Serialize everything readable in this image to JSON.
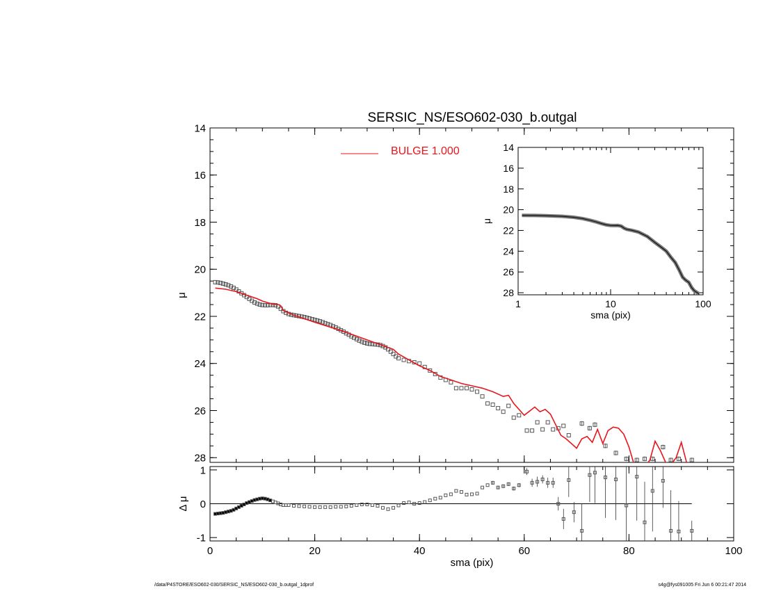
{
  "title": "SERSIC_NS/ESO602-030_b.outgal",
  "footer": {
    "left": "/data/P4STORE/ESO602-030/SERSIC_NS/ESO602-030_b.outgal_1dprof",
    "right": "s4g@fys091005  Fri Jun  6 00:21:47 2014"
  },
  "colors": {
    "model": "#e8151b",
    "points": "#555555",
    "axes": "#000000"
  },
  "chart_data": [
    {
      "name": "main-profile",
      "type": "scatter",
      "xlabel": "",
      "ylabel": "μ",
      "xlim": [
        0,
        100
      ],
      "ylim": [
        28.2,
        14
      ],
      "xticks": [
        0,
        20,
        40,
        60,
        80,
        100
      ],
      "yticks": [
        14,
        16,
        18,
        20,
        22,
        24,
        26,
        28
      ],
      "legend": {
        "position": "top-center",
        "entries": [
          {
            "label": "BULGE  1.000",
            "color": "#e8151b"
          }
        ]
      },
      "series": [
        {
          "name": "data",
          "marker": "square",
          "x": [
            1.0,
            1.5,
            2.0,
            2.5,
            3.0,
            3.5,
            4.0,
            4.5,
            5.0,
            5.5,
            6.0,
            6.5,
            7.0,
            7.5,
            8.0,
            8.5,
            9.0,
            9.5,
            10.0,
            10.5,
            11.0,
            11.5,
            12.0,
            12.5,
            13.0,
            13.5,
            14.0,
            14.5,
            15.0,
            15.5,
            16.0,
            16.5,
            17.0,
            17.5,
            18.0,
            18.5,
            19.0,
            19.5,
            20.0,
            20.5,
            21.0,
            21.5,
            22.0,
            22.5,
            23.0,
            23.5,
            24.0,
            24.5,
            25.0,
            25.5,
            26.0,
            26.5,
            27.0,
            27.5,
            28.0,
            28.5,
            29.0,
            29.5,
            30.0,
            30.5,
            31.0,
            31.5,
            32.0,
            32.5,
            33.0,
            33.5,
            34.0,
            34.5,
            35.0,
            35.5,
            36.0,
            37.0,
            38.0,
            39.0,
            40.0,
            41.0,
            42.0,
            43.0,
            44.0,
            45.0,
            46.0,
            47.0,
            48.0,
            49.0,
            50.0,
            51.0,
            52.0,
            53.0,
            54.0,
            55.0,
            56.0,
            57.0,
            58.0,
            59.0,
            60.5,
            61.5,
            62.5,
            63.5,
            64.5,
            65.5,
            66.5,
            67.5,
            68.5,
            71.0,
            72.5,
            73.5,
            75.5,
            77.5,
            79.5,
            81.5,
            83.0,
            84.5,
            86.5,
            88.0,
            89.5,
            92.0
          ],
          "y": [
            20.55,
            20.56,
            20.58,
            20.61,
            20.64,
            20.68,
            20.73,
            20.79,
            20.86,
            20.94,
            21.02,
            21.1,
            21.18,
            21.26,
            21.34,
            21.41,
            21.46,
            21.5,
            21.52,
            21.53,
            21.53,
            21.52,
            21.52,
            21.53,
            21.58,
            21.68,
            21.78,
            21.85,
            21.9,
            21.93,
            21.95,
            21.97,
            21.99,
            22.01,
            22.03,
            22.06,
            22.09,
            22.12,
            22.15,
            22.18,
            22.21,
            22.25,
            22.29,
            22.33,
            22.37,
            22.42,
            22.47,
            22.53,
            22.59,
            22.65,
            22.72,
            22.78,
            22.85,
            22.91,
            22.97,
            23.03,
            23.08,
            23.12,
            23.15,
            23.17,
            23.18,
            23.19,
            23.2,
            23.22,
            23.26,
            23.32,
            23.4,
            23.5,
            23.6,
            23.7,
            23.78,
            23.85,
            23.9,
            23.95,
            24.0,
            24.15,
            24.3,
            24.45,
            24.6,
            24.7,
            24.8,
            25.05,
            25.05,
            25.05,
            25.1,
            25.2,
            25.4,
            25.7,
            25.75,
            25.9,
            26.05,
            25.8,
            26.3,
            26.2,
            26.85,
            26.85,
            26.5,
            26.8,
            26.5,
            26.8,
            26.75,
            26.65,
            27.05,
            26.55,
            26.75,
            26.6,
            27.5,
            27.8,
            28.05,
            28.1,
            28.05,
            28.05,
            27.55,
            28.1,
            28.05,
            28.1
          ],
          "errors": [
            0.03,
            0.03,
            0.03,
            0.03,
            0.03,
            0.03,
            0.03,
            0.03,
            0.03,
            0.03,
            0.03,
            0.03,
            0.03,
            0.03,
            0.03,
            0.03,
            0.03,
            0.03,
            0.03,
            0.03,
            0.03,
            0.03,
            0.03,
            0.03,
            0.03,
            0.03,
            0.03,
            0.03,
            0.03,
            0.03,
            0.03,
            0.03,
            0.03,
            0.03,
            0.03,
            0.03,
            0.03,
            0.03,
            0.03,
            0.03,
            0.03,
            0.03,
            0.03,
            0.03,
            0.03,
            0.03,
            0.03,
            0.03,
            0.03,
            0.03,
            0.03,
            0.03,
            0.03,
            0.03,
            0.03,
            0.03,
            0.03,
            0.03,
            0.03,
            0.03,
            0.03,
            0.03,
            0.03,
            0.03,
            0.03,
            0.03,
            0.03,
            0.03,
            0.03,
            0.03,
            0.03,
            0.05,
            0.05,
            0.05,
            0.05,
            0.05,
            0.05,
            0.05,
            0.05,
            0.05,
            0.05,
            0.05,
            0.05,
            0.05,
            0.05,
            0.05,
            0.05,
            0.05,
            0.05,
            0.05,
            0.05,
            0.05,
            0.05,
            0.05,
            0.05,
            0.05,
            0.05,
            0.05,
            0.05,
            0.05,
            0.05,
            0.05,
            0.05,
            0.1,
            0.1,
            0.1,
            0.1,
            0.1,
            0.1,
            0.1,
            0.1,
            0.1,
            0.1,
            0.1,
            0.1,
            0.1
          ]
        },
        {
          "name": "BULGE  1.000",
          "type": "line",
          "x": [
            1.0,
            3.0,
            5.0,
            7.0,
            9.0,
            10.0,
            11.0,
            12.0,
            13.0,
            13.5,
            14.0,
            16.0,
            20.0,
            25.0,
            30.0,
            35.0,
            36.0,
            38.0,
            40.0,
            42.0,
            44.0,
            46.0,
            48.0,
            50.0,
            52.0,
            54.0,
            56.0,
            57.0,
            58.0,
            60.0,
            62.0,
            63.0,
            64.0,
            65.0,
            66.0,
            67.0,
            68.0,
            69.0,
            70.0,
            71.0,
            72.0,
            73.0,
            74.0,
            75.0,
            76.0,
            77.0,
            78.0,
            79.0,
            80.0,
            81.0,
            82.0,
            83.0,
            84.0,
            85.0,
            86.0,
            87.0,
            88.0,
            89.0,
            90.0,
            91.0,
            92.0
          ],
          "y": [
            20.8,
            20.85,
            20.95,
            21.1,
            21.25,
            21.35,
            21.42,
            21.48,
            21.5,
            21.55,
            21.75,
            21.95,
            22.25,
            22.6,
            23.0,
            23.4,
            23.6,
            23.85,
            24.1,
            24.3,
            24.55,
            24.7,
            24.85,
            24.95,
            25.05,
            25.2,
            25.4,
            25.35,
            25.7,
            26.2,
            25.85,
            26.05,
            25.95,
            26.15,
            26.6,
            27.05,
            27.2,
            27.4,
            27.6,
            27.2,
            27.1,
            27.35,
            26.8,
            27.4,
            26.85,
            26.7,
            26.75,
            27.0,
            27.55,
            28.3,
            28.5,
            28.4,
            28.1,
            27.3,
            27.7,
            28.2,
            28.3,
            28.0,
            27.35,
            28.2,
            28.4
          ]
        }
      ]
    },
    {
      "name": "inset-log-profile",
      "type": "line",
      "xlabel": "sma (pix)",
      "ylabel": "μ",
      "xscale": "log",
      "xlim": [
        1,
        100
      ],
      "ylim": [
        28.2,
        14
      ],
      "xticks": [
        1,
        10,
        100
      ],
      "yticks": [
        14,
        16,
        18,
        20,
        22,
        24,
        26,
        28
      ],
      "series": [
        {
          "name": "data",
          "x": [
            1.1,
            1.5,
            2,
            3,
            4,
            5,
            6,
            7,
            8,
            9,
            10,
            11,
            12,
            13,
            14,
            15,
            17,
            20,
            25,
            30,
            35,
            40,
            45,
            50,
            55,
            60,
            65,
            70,
            75,
            80,
            90
          ],
          "y": [
            20.55,
            20.56,
            20.58,
            20.64,
            20.73,
            20.86,
            21.02,
            21.18,
            21.34,
            21.46,
            21.52,
            21.53,
            21.52,
            21.58,
            21.78,
            21.9,
            21.99,
            22.15,
            22.59,
            23.15,
            23.6,
            24.0,
            24.6,
            25.1,
            25.8,
            26.5,
            26.8,
            27.0,
            27.5,
            27.8,
            28.1
          ]
        }
      ]
    },
    {
      "name": "residuals",
      "type": "scatter",
      "xlabel": "sma (pix)",
      "ylabel": "Δ μ",
      "xlim": [
        0,
        100
      ],
      "ylim": [
        -1.1,
        1.1
      ],
      "xticks": [
        0,
        20,
        40,
        60,
        80,
        100
      ],
      "yticks": [
        -1,
        0,
        1
      ],
      "reference_line": 0,
      "series": [
        {
          "name": "residual",
          "x": [
            1.0,
            1.5,
            2.0,
            2.5,
            3.0,
            3.5,
            4.0,
            4.5,
            5.0,
            5.5,
            6.0,
            6.5,
            7.0,
            7.5,
            8.0,
            8.5,
            9.0,
            9.5,
            10.0,
            10.5,
            11.0,
            11.5,
            12.0,
            12.5,
            13.0,
            13.5,
            14.0,
            14.5,
            15.0,
            16.0,
            17.0,
            18.0,
            19.0,
            20.0,
            21.0,
            22.0,
            23.0,
            24.0,
            25.0,
            26.0,
            27.0,
            28.0,
            29.0,
            30.0,
            31.0,
            32.0,
            33.0,
            34.0,
            35.0,
            36.0,
            37.0,
            38.0,
            39.0,
            40.0,
            41.0,
            42.0,
            43.0,
            44.0,
            45.0,
            46.0,
            47.0,
            48.0,
            49.0,
            50.0,
            51.0,
            52.0,
            53.0,
            54.0,
            55.0,
            56.0,
            57.0,
            58.0,
            59.0,
            60.5,
            61.5,
            62.5,
            63.5,
            64.5,
            65.5,
            66.5,
            67.5,
            68.5,
            69.5,
            71.0,
            72.5,
            73.5,
            75.5,
            77.5,
            79.5,
            81.5,
            83.0,
            84.5,
            86.5,
            88.0,
            89.5,
            92.0
          ],
          "y": [
            -0.3,
            -0.29,
            -0.28,
            -0.27,
            -0.25,
            -0.23,
            -0.21,
            -0.18,
            -0.14,
            -0.1,
            -0.06,
            -0.02,
            0.02,
            0.05,
            0.08,
            0.11,
            0.13,
            0.15,
            0.16,
            0.15,
            0.13,
            0.1,
            0.07,
            0.04,
            0.01,
            -0.02,
            -0.04,
            -0.04,
            -0.04,
            -0.06,
            -0.07,
            -0.08,
            -0.09,
            -0.1,
            -0.1,
            -0.1,
            -0.1,
            -0.09,
            -0.09,
            -0.08,
            -0.06,
            -0.04,
            -0.02,
            -0.02,
            -0.04,
            -0.06,
            -0.12,
            -0.16,
            -0.12,
            -0.05,
            0.02,
            0.04,
            0.0,
            0.02,
            0.05,
            0.1,
            0.15,
            0.18,
            0.25,
            0.28,
            0.38,
            0.35,
            0.27,
            0.28,
            0.3,
            0.48,
            0.55,
            0.62,
            0.48,
            0.52,
            0.58,
            0.45,
            0.55,
            0.95,
            0.62,
            0.65,
            0.72,
            0.62,
            0.62,
            0.0,
            -0.45,
            0.7,
            -0.25,
            -0.8,
            0.85,
            0.92,
            0.78,
            0.72,
            -0.05,
            0.8,
            -0.55,
            0.38,
            0.68,
            -0.8,
            -0.82,
            -0.8
          ],
          "errors": [
            0.01,
            0.01,
            0.01,
            0.01,
            0.01,
            0.01,
            0.01,
            0.01,
            0.01,
            0.01,
            0.01,
            0.01,
            0.01,
            0.01,
            0.01,
            0.01,
            0.01,
            0.01,
            0.01,
            0.01,
            0.01,
            0.01,
            0.01,
            0.01,
            0.01,
            0.01,
            0.01,
            0.01,
            0.01,
            0.01,
            0.01,
            0.01,
            0.01,
            0.01,
            0.01,
            0.01,
            0.01,
            0.01,
            0.01,
            0.01,
            0.01,
            0.01,
            0.01,
            0.01,
            0.01,
            0.01,
            0.01,
            0.01,
            0.01,
            0.01,
            0.01,
            0.01,
            0.01,
            0.01,
            0.01,
            0.01,
            0.01,
            0.01,
            0.01,
            0.01,
            0.01,
            0.01,
            0.01,
            0.01,
            0.01,
            0.01,
            0.01,
            0.05,
            0.05,
            0.05,
            0.05,
            0.06,
            0.06,
            0.1,
            0.12,
            0.15,
            0.12,
            0.15,
            0.15,
            0.2,
            0.3,
            0.5,
            0.3,
            0.8,
            0.8,
            0.9,
            1.2,
            1.2,
            1.2,
            1.3,
            1.2,
            1.2,
            0.8,
            1.2,
            0.9,
            0.3
          ]
        }
      ]
    }
  ]
}
